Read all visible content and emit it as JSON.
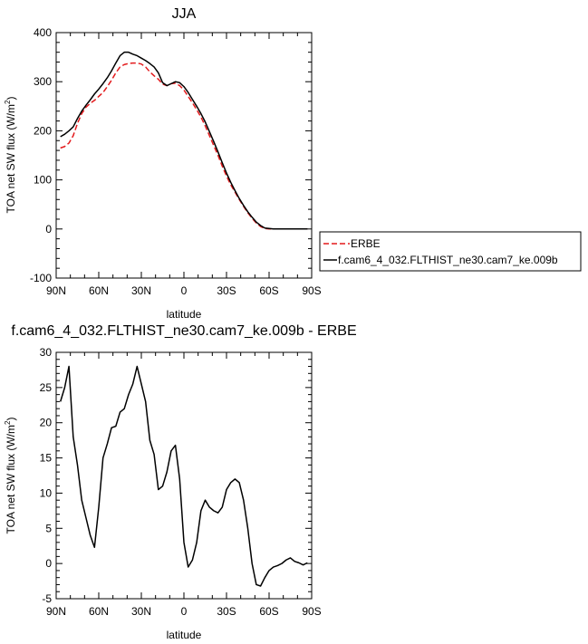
{
  "chart_data": [
    {
      "type": "line",
      "title": "JJA",
      "xlabel": "latitude",
      "ylabel": "TOA net SW flux (W/m",
      "ylabel_sup": "2",
      "ylabel_end": ")",
      "xlim": [
        90,
        -90
      ],
      "ylim": [
        -100,
        400
      ],
      "xticks": [
        90,
        60,
        30,
        0,
        -30,
        -60,
        -90
      ],
      "xtick_labels": [
        "90N",
        "60N",
        "30N",
        "0",
        "30S",
        "60S",
        "90S"
      ],
      "yticks": [
        -100,
        0,
        100,
        200,
        300,
        400
      ],
      "ytick_labels": [
        "-100",
        "0",
        "100",
        "200",
        "300",
        "400"
      ],
      "legend_position": "right",
      "series": [
        {
          "name": "ERBE",
          "color": "#e31a1c",
          "dash": "dashed",
          "x": [
            87,
            84,
            81,
            78,
            75,
            72,
            69,
            66,
            63,
            60,
            57,
            54,
            51,
            48,
            45,
            42,
            39,
            36,
            33,
            30,
            27,
            24,
            21,
            18,
            15,
            12,
            9,
            6,
            3,
            0,
            -3,
            -6,
            -9,
            -12,
            -15,
            -18,
            -21,
            -24,
            -27,
            -30,
            -33,
            -36,
            -39,
            -42,
            -45,
            -48,
            -51,
            -54,
            -57,
            -60,
            -63,
            -66,
            -69,
            -72,
            -75,
            -78,
            -81,
            -84,
            -87
          ],
          "y": [
            165,
            168,
            175,
            190,
            215,
            235,
            248,
            256,
            262,
            270,
            278,
            290,
            303,
            318,
            330,
            335,
            337,
            338,
            338,
            336,
            330,
            320,
            312,
            305,
            295,
            292,
            296,
            297,
            292,
            283,
            270,
            257,
            243,
            228,
            210,
            190,
            170,
            150,
            128,
            108,
            90,
            75,
            60,
            46,
            33,
            22,
            12,
            5,
            1,
            0,
            0,
            0,
            0,
            0,
            0,
            0,
            0,
            0,
            0
          ]
        },
        {
          "name": "f.cam6_4_032.FLTHIST_ne30.cam7_ke.009b",
          "color": "#000000",
          "dash": "solid",
          "x": [
            87,
            84,
            81,
            78,
            75,
            72,
            69,
            66,
            63,
            60,
            57,
            54,
            51,
            48,
            45,
            42,
            39,
            36,
            33,
            30,
            27,
            24,
            21,
            18,
            15,
            12,
            9,
            6,
            3,
            0,
            -3,
            -6,
            -9,
            -12,
            -15,
            -18,
            -21,
            -24,
            -27,
            -30,
            -33,
            -36,
            -39,
            -42,
            -45,
            -48,
            -51,
            -54,
            -57,
            -60,
            -63,
            -66,
            -69,
            -72,
            -75,
            -78,
            -81,
            -84,
            -87
          ],
          "y": [
            188,
            193,
            200,
            208,
            225,
            240,
            252,
            263,
            275,
            285,
            296,
            308,
            322,
            338,
            353,
            360,
            360,
            356,
            353,
            348,
            343,
            337,
            330,
            318,
            298,
            292,
            296,
            300,
            298,
            290,
            278,
            264,
            250,
            235,
            218,
            198,
            178,
            157,
            135,
            114,
            95,
            78,
            62,
            48,
            35,
            24,
            14,
            7,
            2,
            1,
            0,
            0,
            0,
            0,
            0,
            0,
            0,
            0,
            0
          ]
        }
      ]
    },
    {
      "type": "line",
      "title": "f.cam6_4_032.FLTHIST_ne30.cam7_ke.009b - ERBE",
      "xlabel": "latitude",
      "ylabel": "TOA net SW flux (W/m",
      "ylabel_sup": "2",
      "ylabel_end": ")",
      "xlim": [
        90,
        -90
      ],
      "ylim": [
        -5,
        30
      ],
      "xticks": [
        90,
        60,
        30,
        0,
        -30,
        -60,
        -90
      ],
      "xtick_labels": [
        "90N",
        "60N",
        "30N",
        "0",
        "30S",
        "60S",
        "90S"
      ],
      "yticks": [
        -5,
        0,
        5,
        10,
        15,
        20,
        25,
        30
      ],
      "ytick_labels": [
        "-5",
        "0",
        "5",
        "10",
        "15",
        "20",
        "25",
        "30"
      ],
      "series": [
        {
          "color": "#000000",
          "dash": "solid",
          "x": [
            87,
            84,
            81,
            78,
            75,
            72,
            69,
            66,
            63,
            60,
            57,
            54,
            51,
            48,
            45,
            42,
            39,
            36,
            33,
            30,
            27,
            24,
            21,
            18,
            15,
            12,
            9,
            6,
            3,
            0,
            -3,
            -6,
            -9,
            -12,
            -15,
            -18,
            -21,
            -24,
            -27,
            -30,
            -33,
            -36,
            -39,
            -42,
            -45,
            -48,
            -51,
            -54,
            -57,
            -60,
            -63,
            -66,
            -69,
            -72,
            -75,
            -78,
            -81,
            -84,
            -87
          ],
          "y": [
            23,
            25,
            28,
            18,
            14,
            9,
            6.5,
            4,
            2.3,
            8,
            15,
            17,
            19.3,
            19.5,
            21.5,
            22,
            24,
            25.5,
            28,
            25.5,
            23,
            17.5,
            15.5,
            10.5,
            11,
            13,
            16,
            16.8,
            12,
            3,
            -0.5,
            0.5,
            3,
            7.5,
            9,
            8,
            7.5,
            7.2,
            8,
            10.5,
            11.5,
            12,
            11.5,
            9,
            5,
            0,
            -3,
            -3.2,
            -2,
            -1,
            -0.5,
            -0.3,
            0,
            0.5,
            0.8,
            0.3,
            0.1,
            -0.2,
            0.1
          ]
        }
      ]
    }
  ]
}
